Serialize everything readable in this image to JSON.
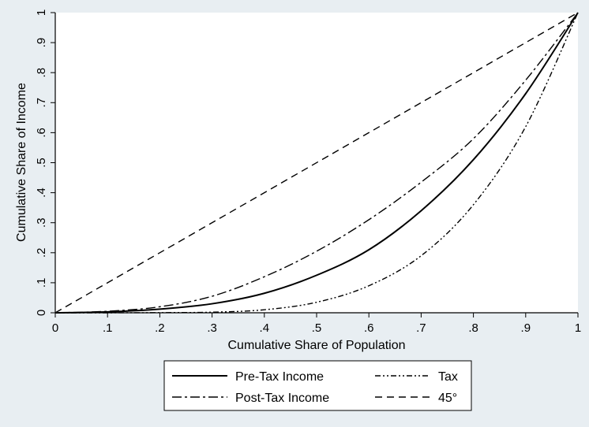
{
  "chart_data": {
    "type": "line",
    "title": "",
    "xlabel": "Cumulative Share of Population",
    "ylabel": "Cumulative Share of Income",
    "xlim": [
      0,
      1
    ],
    "ylim": [
      0,
      1
    ],
    "x_ticks": [
      "0",
      ".1",
      ".2",
      ".3",
      ".4",
      ".5",
      ".6",
      ".7",
      ".8",
      ".9",
      "1"
    ],
    "y_ticks": [
      "0",
      ".1",
      ".2",
      ".3",
      ".4",
      ".5",
      ".6",
      ".7",
      ".8",
      ".9",
      "1"
    ],
    "grid": false,
    "legend_position": "bottom",
    "x": [
      0,
      0.1,
      0.2,
      0.3,
      0.4,
      0.5,
      0.6,
      0.7,
      0.8,
      0.9,
      1
    ],
    "series": [
      {
        "name": "Pre-Tax Income",
        "style": "solid",
        "values": [
          0,
          0.003,
          0.012,
          0.03,
          0.065,
          0.125,
          0.21,
          0.34,
          0.51,
          0.73,
          1
        ]
      },
      {
        "name": "Post-Tax Income",
        "style": "dash-dot",
        "values": [
          0,
          0.005,
          0.02,
          0.055,
          0.12,
          0.205,
          0.31,
          0.435,
          0.58,
          0.775,
          1
        ]
      },
      {
        "name": "Tax",
        "style": "dash-dot-dot",
        "values": [
          0,
          0,
          0.0005,
          0.002,
          0.01,
          0.035,
          0.09,
          0.19,
          0.36,
          0.62,
          1
        ]
      },
      {
        "name": "45°",
        "style": "dash",
        "values": [
          0,
          0.1,
          0.2,
          0.3,
          0.4,
          0.5,
          0.6,
          0.7,
          0.8,
          0.9,
          1
        ]
      }
    ]
  }
}
